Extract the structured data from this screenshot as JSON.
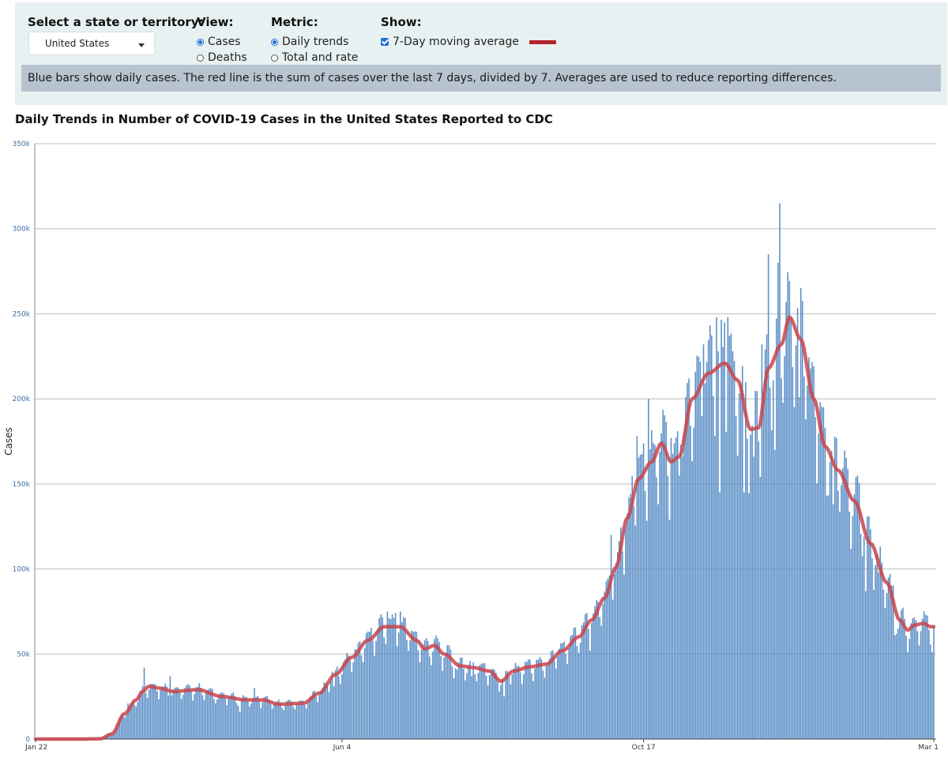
{
  "controls": {
    "state": {
      "label": "Select a state or territory:",
      "value": "United States"
    },
    "view": {
      "label": "View:",
      "options": [
        "Cases",
        "Deaths"
      ],
      "selected": "Cases"
    },
    "metric": {
      "label": "Metric:",
      "options": [
        "Daily trends",
        "Total and rate"
      ],
      "selected": "Daily trends"
    },
    "show": {
      "label": "Show:",
      "checkbox_label": "7-Day moving average",
      "checked": true,
      "swatch_color": "#b5232b"
    }
  },
  "info_text": "Blue bars show daily cases. The red line is the sum of cases over the last 7 days, divided by 7. Averages are used to reduce reporting differences.",
  "chart_data": {
    "type": "bar",
    "title": "Daily Trends in Number of COVID-19 Cases in the United States Reported to CDC",
    "ylabel": "Cases",
    "xlabel": "",
    "ylim": [
      0,
      350000
    ],
    "y_ticks": [
      "0",
      "50k",
      "100k",
      "150k",
      "200k",
      "250k",
      "300k",
      "350k"
    ],
    "x_ticks": [
      "Jan 22",
      "Jun 4",
      "Oct 17",
      "Mar 1"
    ],
    "grid": true,
    "bar_color": "#5b8fc7",
    "line_color": "#c9454b",
    "series": [
      {
        "name": "",
        "kind": "bars",
        "note_keys": "approximate daily values read from the figure"
      },
      {
        "name": "7-Day moving average",
        "kind": "line"
      }
    ],
    "avg_keypoints": [
      [
        0,
        0
      ],
      [
        30,
        0
      ],
      [
        40,
        200
      ],
      [
        47,
        3000
      ],
      [
        55,
        15000
      ],
      [
        62,
        23000
      ],
      [
        66,
        28000
      ],
      [
        70,
        31000
      ],
      [
        76,
        30000
      ],
      [
        85,
        28000
      ],
      [
        100,
        29000
      ],
      [
        115,
        25000
      ],
      [
        130,
        23000
      ],
      [
        140,
        23000
      ],
      [
        150,
        20500
      ],
      [
        165,
        21000
      ],
      [
        175,
        27000
      ],
      [
        185,
        38000
      ],
      [
        195,
        48000
      ],
      [
        205,
        58000
      ],
      [
        215,
        66000
      ],
      [
        225,
        66000
      ],
      [
        235,
        58000
      ],
      [
        240,
        53000
      ],
      [
        246,
        55000
      ],
      [
        252,
        50000
      ],
      [
        262,
        43000
      ],
      [
        270,
        42000
      ],
      [
        280,
        40000
      ],
      [
        287,
        34000
      ],
      [
        295,
        40000
      ],
      [
        305,
        42500
      ],
      [
        315,
        44000
      ],
      [
        325,
        52000
      ],
      [
        335,
        60000
      ],
      [
        343,
        70000
      ],
      [
        351,
        83000
      ],
      [
        358,
        101000
      ],
      [
        365,
        130000
      ],
      [
        372,
        153000
      ],
      [
        380,
        163000
      ],
      [
        386,
        174000
      ],
      [
        392,
        163000
      ],
      [
        397,
        166000
      ],
      [
        405,
        200000
      ],
      [
        415,
        215000
      ],
      [
        425,
        221000
      ],
      [
        433,
        211000
      ],
      [
        441,
        182000
      ],
      [
        446,
        183000
      ],
      [
        452,
        218000
      ],
      [
        460,
        232000
      ],
      [
        465,
        248000
      ],
      [
        472,
        235000
      ],
      [
        480,
        200000
      ],
      [
        487,
        172000
      ],
      [
        495,
        158000
      ],
      [
        505,
        140000
      ],
      [
        515,
        115000
      ],
      [
        525,
        92000
      ],
      [
        533,
        70000
      ],
      [
        538,
        64000
      ],
      [
        542,
        67000
      ],
      [
        548,
        68000
      ],
      [
        552,
        66000
      ]
    ],
    "bar_spikes": [
      [
        67,
        42000
      ],
      [
        83,
        37000
      ],
      [
        135,
        30000
      ],
      [
        217,
        75000
      ],
      [
        222,
        74000
      ],
      [
        225,
        75000
      ],
      [
        355,
        120000
      ],
      [
        371,
        178000
      ],
      [
        378,
        200000
      ],
      [
        392,
        177000
      ],
      [
        398,
        173000
      ],
      [
        412,
        232000
      ],
      [
        420,
        248000
      ],
      [
        425,
        245000
      ],
      [
        427,
        248000
      ],
      [
        430,
        228000
      ],
      [
        448,
        232000
      ],
      [
        452,
        285000
      ],
      [
        458,
        280000
      ],
      [
        459,
        315000
      ],
      [
        466,
        248000
      ],
      [
        471,
        245000
      ],
      [
        492,
        138000
      ],
      [
        520,
        98000
      ]
    ],
    "bar_dips": [
      [
        57,
        21000
      ],
      [
        126,
        16000
      ],
      [
        184,
        31000
      ],
      [
        260,
        41000
      ],
      [
        269,
        37000
      ],
      [
        289,
        25000
      ],
      [
        301,
        38000
      ],
      [
        342,
        52000
      ],
      [
        384,
        138000
      ],
      [
        406,
        183000
      ],
      [
        422,
        145000
      ],
      [
        437,
        145000
      ],
      [
        443,
        166000
      ],
      [
        456,
        170000
      ],
      [
        471,
        201000
      ],
      [
        488,
        143000
      ],
      [
        512,
        87000
      ],
      [
        530,
        61000
      ],
      [
        545,
        55000
      ],
      [
        553,
        51000
      ]
    ]
  }
}
